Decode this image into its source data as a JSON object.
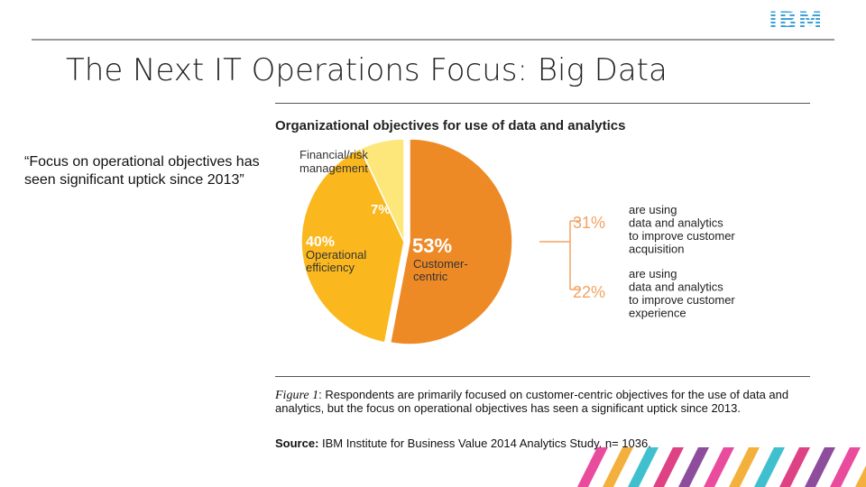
{
  "logo": "IBM",
  "title": "The Next IT Operations Focus: Big Data",
  "quote": "“Focus on operational objectives has seen significant uptick since 2013”",
  "figure": {
    "title": "Organizational objectives for use of data and analytics",
    "caption_label": "Figure 1",
    "caption_colon": ":",
    "caption_text": " Respondents are primarily focused on customer-centric objectives for the use of data and analytics, but the focus on operational objectives has seen a significant uptick since 2013.",
    "source_label": "Source:",
    "source_text": " IBM Institute for Business Value 2014 Analytics Study. n= 1036."
  },
  "chart_data": {
    "type": "pie",
    "title": "Organizational objectives for use of data and analytics",
    "slices": [
      {
        "percent_label": "53%",
        "value": 53,
        "name_lines": [
          "Customer-",
          "centric"
        ],
        "color": "#ee8a26"
      },
      {
        "percent_label": "40%",
        "value": 40,
        "name_lines": [
          "Operational",
          "efficiency"
        ],
        "color": "#fbb81e"
      },
      {
        "percent_label": "7%",
        "value": 7,
        "name_lines": [
          "Financial/risk",
          "management"
        ],
        "color": "#fde67a"
      }
    ],
    "breakdown": [
      {
        "percent_label": "31%",
        "value": 31,
        "lines": [
          "are using",
          "data and analytics",
          "to improve customer",
          "acquisition"
        ]
      },
      {
        "percent_label": "22%",
        "value": 22,
        "lines": [
          "are using",
          "data and analytics",
          "to improve customer",
          "experience"
        ]
      }
    ]
  },
  "colors": {
    "customer_centric": "#ee8a26",
    "operational": "#fbb81e",
    "financial": "#fde67a",
    "bracket": "#f2a363",
    "logo_blue": "#1f70c1",
    "deco": [
      "#e62d8c",
      "#f2a21b",
      "#1fb5c7",
      "#d8206f",
      "#7a2d8c"
    ]
  }
}
